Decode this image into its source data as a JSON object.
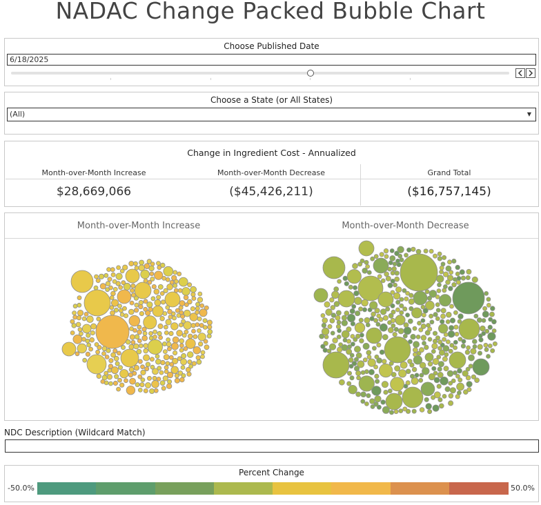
{
  "title": "NADAC Change Packed Bubble Chart",
  "date_filter": {
    "label": "Choose Published Date",
    "value": "6/18/2025",
    "prev_icon": "chevron-left-icon",
    "next_icon": "chevron-right-icon",
    "slider_position_fraction": 0.59
  },
  "state_filter": {
    "label": "Choose a State (or All States)",
    "value": "(All)",
    "arrow_icon": "dropdown-arrow-icon"
  },
  "kpi": {
    "title": "Change in Ingredient Cost - Annualized",
    "columns": [
      {
        "header": "Month-over-Month Increase",
        "value": "$28,669,066"
      },
      {
        "header": "Month-over-Month Decrease",
        "value": "($45,426,211)"
      },
      {
        "header": "Grand Total",
        "value": "($16,757,145)"
      }
    ]
  },
  "bubbles": {
    "increase_title": "Month-over-Month Increase",
    "decrease_title": "Month-over-Month Decrease",
    "increase_colors": [
      "#e8c94a",
      "#ecc24a",
      "#f0b84c",
      "#e6cf52",
      "#dccf4c"
    ],
    "decrease_colors": [
      "#a8b84c",
      "#b2bd4e",
      "#9eb550",
      "#8aab58",
      "#6f9a5c",
      "#c1c44e"
    ]
  },
  "ndc": {
    "label": "NDC Description (Wildcard Match)",
    "value": ""
  },
  "legend": {
    "title": "Percent Change",
    "min_label": "-50.0%",
    "max_label": "50.0%",
    "colors": [
      "#4e9a7e",
      "#5e9d6c",
      "#78a05c",
      "#acb94e",
      "#e8c340",
      "#f1b84a",
      "#dc914e",
      "#c8674c"
    ]
  }
}
